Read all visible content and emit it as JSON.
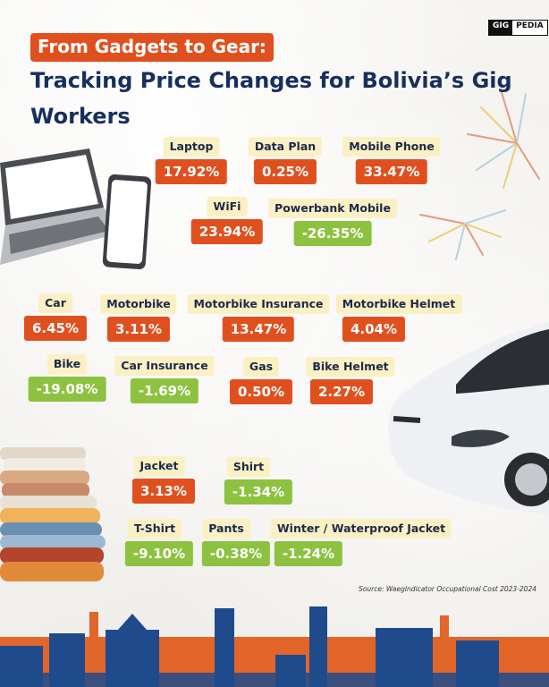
{
  "brand": {
    "part1": "GIG",
    "part2": "PEDIA"
  },
  "title": {
    "line1": "From Gadgets to Gear:",
    "line2": "Tracking Price Changes for Bolivia’s Gig Workers"
  },
  "source": "Source: WaegIndicator Occupational Cost 2023-2024",
  "colors": {
    "increase": "#e0501f",
    "decrease": "#8cc23f",
    "label_bg": "#fbf0c3",
    "title": "#172f5e"
  },
  "groups": {
    "gadgets": [
      {
        "label": "Laptop",
        "value": "17.92%",
        "direction": "up"
      },
      {
        "label": "Data Plan",
        "value": "0.25%",
        "direction": "up"
      },
      {
        "label": "Mobile Phone",
        "value": "33.47%",
        "direction": "up"
      },
      {
        "label": "WiFi",
        "value": "23.94%",
        "direction": "up"
      },
      {
        "label": "Powerbank Mobile",
        "value": "-26.35%",
        "direction": "down"
      }
    ],
    "vehicles": [
      {
        "label": "Car",
        "value": "6.45%",
        "direction": "up"
      },
      {
        "label": "Motorbike",
        "value": "3.11%",
        "direction": "up"
      },
      {
        "label": "Motorbike Insurance",
        "value": "13.47%",
        "direction": "up"
      },
      {
        "label": "Motorbike Helmet",
        "value": "4.04%",
        "direction": "up"
      },
      {
        "label": "Bike",
        "value": "-19.08%",
        "direction": "down"
      },
      {
        "label": "Car Insurance",
        "value": "-1.69%",
        "direction": "down"
      },
      {
        "label": "Gas",
        "value": "0.50%",
        "direction": "up"
      },
      {
        "label": "Bike Helmet",
        "value": "2.27%",
        "direction": "up"
      }
    ],
    "clothing": [
      {
        "label": "Jacket",
        "value": "3.13%",
        "direction": "up"
      },
      {
        "label": "Shirt",
        "value": "-1.34%",
        "direction": "down"
      },
      {
        "label": "T-Shirt",
        "value": "-9.10%",
        "direction": "down"
      },
      {
        "label": "Pants",
        "value": "-0.38%",
        "direction": "down"
      },
      {
        "label": "Winter / Waterproof Jacket",
        "value": "-1.24%",
        "direction": "down"
      }
    ]
  }
}
